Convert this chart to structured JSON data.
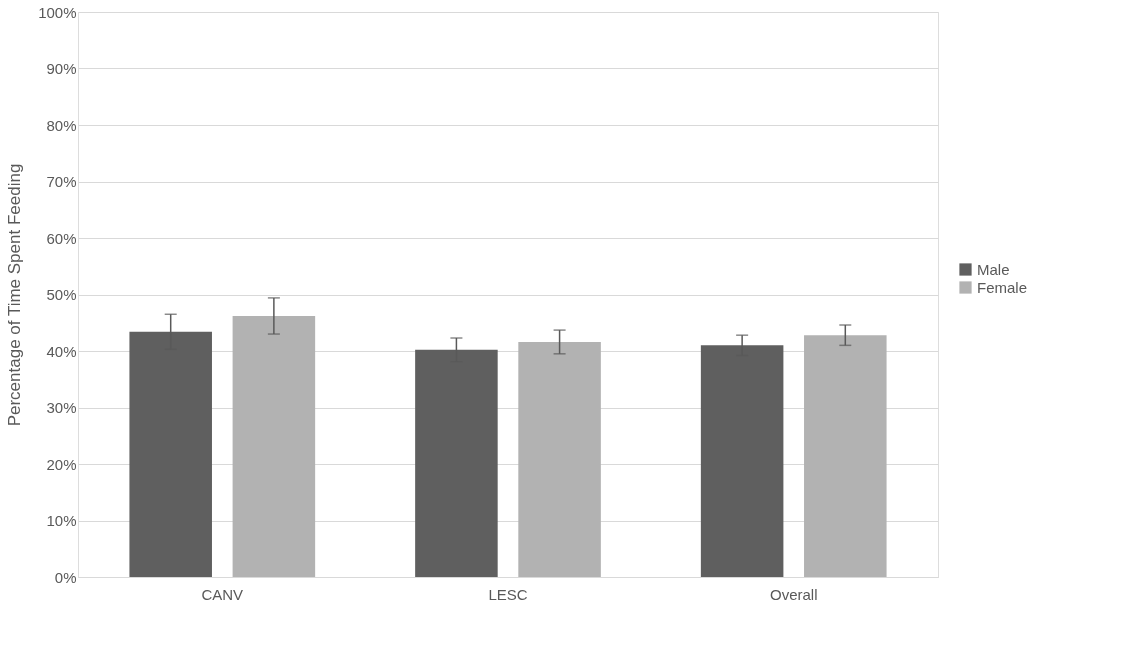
{
  "chart_data": {
    "type": "bar",
    "ylabel": "Percentage of Time Spent Feeding",
    "categories": [
      "CANV",
      "LESC",
      "Overall"
    ],
    "series": [
      {
        "name": "Male",
        "color": "#5f5f5f",
        "values": [
          43.4,
          40.2,
          41.0
        ],
        "errors": [
          3.1,
          2.1,
          1.8
        ]
      },
      {
        "name": "Female",
        "color": "#b2b2b2",
        "values": [
          46.2,
          41.6,
          42.8
        ],
        "errors": [
          3.2,
          2.1,
          1.8
        ]
      }
    ],
    "ylim": [
      0,
      100
    ],
    "yticks": [
      {
        "value": 0,
        "label": "0%"
      },
      {
        "value": 10,
        "label": "10%"
      },
      {
        "value": 20,
        "label": "20%"
      },
      {
        "value": 30,
        "label": "30%"
      },
      {
        "value": 40,
        "label": "40%"
      },
      {
        "value": 50,
        "label": "50%"
      },
      {
        "value": 60,
        "label": "60%"
      },
      {
        "value": 70,
        "label": "70%"
      },
      {
        "value": 80,
        "label": "80%"
      },
      {
        "value": 90,
        "label": "90%"
      },
      {
        "value": 100,
        "label": "100%"
      }
    ],
    "grid": "y",
    "legend": "right"
  }
}
